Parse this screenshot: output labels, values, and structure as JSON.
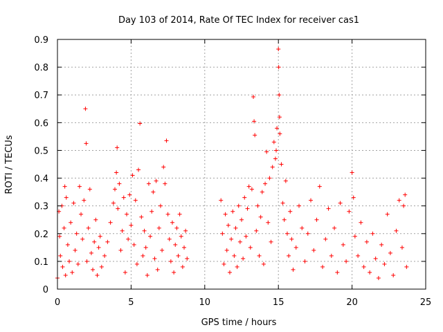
{
  "chart_data": {
    "type": "scatter",
    "title": "Day 103 of 2014, Rate Of TEC Index for receiver cas1",
    "xlabel": "GPS time / hours",
    "ylabel": "ROTI / TECUs",
    "xlim": [
      0,
      25
    ],
    "ylim": [
      0,
      0.9
    ],
    "xticks": [
      0,
      5,
      10,
      15,
      20,
      25
    ],
    "yticks": [
      0,
      0.1,
      0.2,
      0.3,
      0.4,
      0.5,
      0.6,
      0.7,
      0.8,
      0.9
    ],
    "xtick_labels": [
      "0",
      "5",
      "10",
      "15",
      "20",
      "25"
    ],
    "ytick_labels": [
      "0",
      "0.1",
      "0.2",
      "0.3",
      "0.4",
      "0.5",
      "0.6",
      "0.7",
      "0.8",
      "0.9"
    ],
    "grid": true,
    "marker": "+",
    "color": "#ff0000",
    "data_gap_hours": [
      8.8,
      11.0
    ],
    "points": [
      [
        0.0,
        0.04
      ],
      [
        0.1,
        0.28
      ],
      [
        0.15,
        0.19
      ],
      [
        0.2,
        0.12
      ],
      [
        0.3,
        0.3
      ],
      [
        0.35,
        0.08
      ],
      [
        0.45,
        0.22
      ],
      [
        0.5,
        0.37
      ],
      [
        0.55,
        0.05
      ],
      [
        0.6,
        0.33
      ],
      [
        0.7,
        0.16
      ],
      [
        0.8,
        0.1
      ],
      [
        0.9,
        0.24
      ],
      [
        1.0,
        0.06
      ],
      [
        1.1,
        0.31
      ],
      [
        1.2,
        0.14
      ],
      [
        1.3,
        0.2
      ],
      [
        1.4,
        0.09
      ],
      [
        1.5,
        0.37
      ],
      [
        1.6,
        0.27
      ],
      [
        1.7,
        0.18
      ],
      [
        1.8,
        0.32
      ],
      [
        1.9,
        0.65
      ],
      [
        1.95,
        0.525
      ],
      [
        2.0,
        0.1
      ],
      [
        2.1,
        0.22
      ],
      [
        2.2,
        0.36
      ],
      [
        2.3,
        0.13
      ],
      [
        2.4,
        0.07
      ],
      [
        2.5,
        0.17
      ],
      [
        2.6,
        0.25
      ],
      [
        2.7,
        0.05
      ],
      [
        2.8,
        0.15
      ],
      [
        2.9,
        0.19
      ],
      [
        3.0,
        0.08
      ],
      [
        3.2,
        0.12
      ],
      [
        3.4,
        0.17
      ],
      [
        3.6,
        0.24
      ],
      [
        3.8,
        0.31
      ],
      [
        3.9,
        0.36
      ],
      [
        4.0,
        0.42
      ],
      [
        4.05,
        0.51
      ],
      [
        4.1,
        0.29
      ],
      [
        4.2,
        0.38
      ],
      [
        4.3,
        0.14
      ],
      [
        4.4,
        0.21
      ],
      [
        4.5,
        0.33
      ],
      [
        4.6,
        0.06
      ],
      [
        4.7,
        0.27
      ],
      [
        4.8,
        0.18
      ],
      [
        4.9,
        0.34
      ],
      [
        5.0,
        0.23
      ],
      [
        5.1,
        0.41
      ],
      [
        5.2,
        0.16
      ],
      [
        5.3,
        0.32
      ],
      [
        5.4,
        0.09
      ],
      [
        5.5,
        0.43
      ],
      [
        5.6,
        0.597
      ],
      [
        5.7,
        0.26
      ],
      [
        5.8,
        0.12
      ],
      [
        5.9,
        0.21
      ],
      [
        6.0,
        0.15
      ],
      [
        6.1,
        0.05
      ],
      [
        6.2,
        0.38
      ],
      [
        6.3,
        0.19
      ],
      [
        6.4,
        0.28
      ],
      [
        6.5,
        0.35
      ],
      [
        6.6,
        0.11
      ],
      [
        6.7,
        0.39
      ],
      [
        6.8,
        0.07
      ],
      [
        6.9,
        0.22
      ],
      [
        7.0,
        0.3
      ],
      [
        7.1,
        0.14
      ],
      [
        7.2,
        0.44
      ],
      [
        7.3,
        0.38
      ],
      [
        7.4,
        0.535
      ],
      [
        7.5,
        0.27
      ],
      [
        7.6,
        0.18
      ],
      [
        7.7,
        0.1
      ],
      [
        7.8,
        0.24
      ],
      [
        7.9,
        0.06
      ],
      [
        8.0,
        0.16
      ],
      [
        8.1,
        0.22
      ],
      [
        8.2,
        0.12
      ],
      [
        8.3,
        0.27
      ],
      [
        8.4,
        0.19
      ],
      [
        8.5,
        0.08
      ],
      [
        8.6,
        0.15
      ],
      [
        8.7,
        0.21
      ],
      [
        8.8,
        0.11
      ],
      [
        11.1,
        0.32
      ],
      [
        11.2,
        0.2
      ],
      [
        11.3,
        0.09
      ],
      [
        11.4,
        0.27
      ],
      [
        11.5,
        0.14
      ],
      [
        11.6,
        0.23
      ],
      [
        11.7,
        0.06
      ],
      [
        11.8,
        0.18
      ],
      [
        11.9,
        0.28
      ],
      [
        12.0,
        0.12
      ],
      [
        12.1,
        0.22
      ],
      [
        12.2,
        0.08
      ],
      [
        12.3,
        0.3
      ],
      [
        12.4,
        0.17
      ],
      [
        12.5,
        0.25
      ],
      [
        12.6,
        0.11
      ],
      [
        12.7,
        0.33
      ],
      [
        12.8,
        0.19
      ],
      [
        12.9,
        0.29
      ],
      [
        13.0,
        0.37
      ],
      [
        13.1,
        0.15
      ],
      [
        13.2,
        0.36
      ],
      [
        13.3,
        0.693
      ],
      [
        13.35,
        0.605
      ],
      [
        13.4,
        0.555
      ],
      [
        13.5,
        0.21
      ],
      [
        13.6,
        0.3
      ],
      [
        13.7,
        0.12
      ],
      [
        13.8,
        0.26
      ],
      [
        13.9,
        0.35
      ],
      [
        14.0,
        0.09
      ],
      [
        14.1,
        0.38
      ],
      [
        14.2,
        0.495
      ],
      [
        14.3,
        0.24
      ],
      [
        14.4,
        0.4
      ],
      [
        14.5,
        0.17
      ],
      [
        14.6,
        0.44
      ],
      [
        14.7,
        0.53
      ],
      [
        14.8,
        0.47
      ],
      [
        14.85,
        0.5
      ],
      [
        14.9,
        0.58
      ],
      [
        15.0,
        0.865
      ],
      [
        15.02,
        0.8
      ],
      [
        15.05,
        0.7
      ],
      [
        15.08,
        0.62
      ],
      [
        15.1,
        0.56
      ],
      [
        15.2,
        0.45
      ],
      [
        15.3,
        0.31
      ],
      [
        15.4,
        0.25
      ],
      [
        15.5,
        0.39
      ],
      [
        15.6,
        0.2
      ],
      [
        15.7,
        0.12
      ],
      [
        15.8,
        0.28
      ],
      [
        15.9,
        0.18
      ],
      [
        16.0,
        0.07
      ],
      [
        16.2,
        0.15
      ],
      [
        16.4,
        0.3
      ],
      [
        16.6,
        0.22
      ],
      [
        16.8,
        0.1
      ],
      [
        17.0,
        0.2
      ],
      [
        17.2,
        0.32
      ],
      [
        17.4,
        0.14
      ],
      [
        17.6,
        0.25
      ],
      [
        17.8,
        0.37
      ],
      [
        18.0,
        0.08
      ],
      [
        18.2,
        0.18
      ],
      [
        18.4,
        0.29
      ],
      [
        18.6,
        0.12
      ],
      [
        18.8,
        0.22
      ],
      [
        19.0,
        0.06
      ],
      [
        19.2,
        0.31
      ],
      [
        19.4,
        0.16
      ],
      [
        19.6,
        0.1
      ],
      [
        19.8,
        0.28
      ],
      [
        20.0,
        0.42
      ],
      [
        20.1,
        0.33
      ],
      [
        20.2,
        0.19
      ],
      [
        20.4,
        0.12
      ],
      [
        20.6,
        0.24
      ],
      [
        20.8,
        0.08
      ],
      [
        21.0,
        0.17
      ],
      [
        21.2,
        0.06
      ],
      [
        21.4,
        0.2
      ],
      [
        21.6,
        0.11
      ],
      [
        21.8,
        0.04
      ],
      [
        22.0,
        0.16
      ],
      [
        22.2,
        0.09
      ],
      [
        22.4,
        0.27
      ],
      [
        22.6,
        0.13
      ],
      [
        22.8,
        0.05
      ],
      [
        23.0,
        0.21
      ],
      [
        23.2,
        0.32
      ],
      [
        23.4,
        0.15
      ],
      [
        23.5,
        0.3
      ],
      [
        23.6,
        0.34
      ],
      [
        23.7,
        0.08
      ]
    ]
  }
}
